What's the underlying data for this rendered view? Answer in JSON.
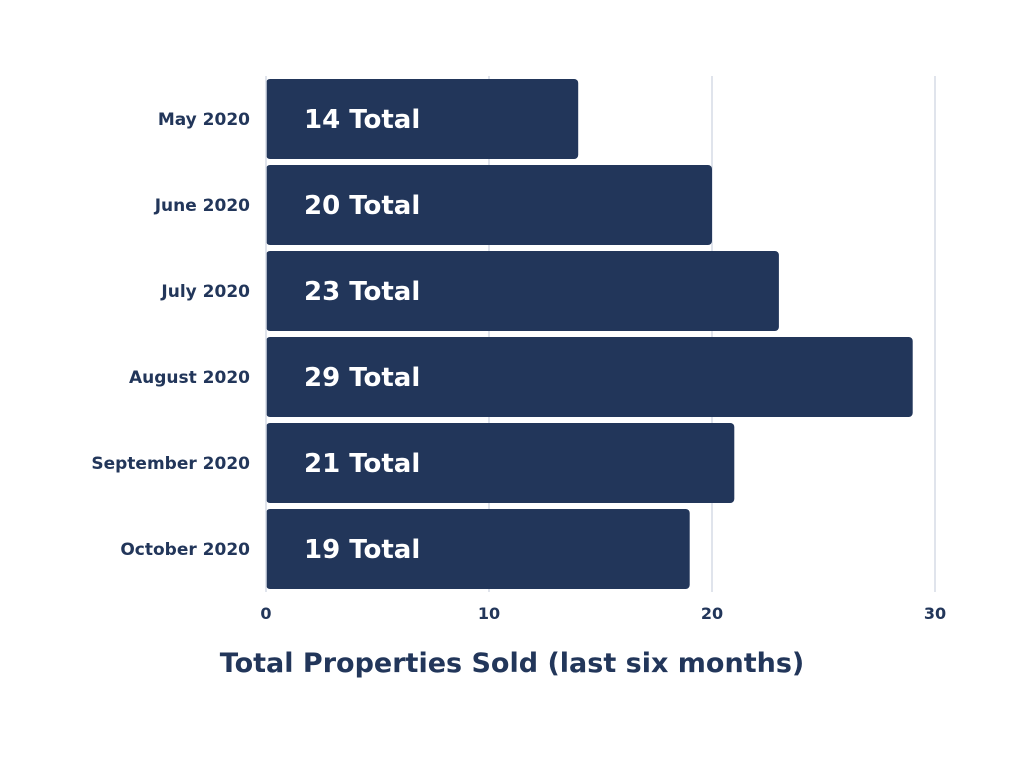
{
  "chart_data": {
    "type": "bar",
    "orientation": "horizontal",
    "categories": [
      "May 2020",
      "June 2020",
      "July 2020",
      "August 2020",
      "September 2020",
      "October 2020"
    ],
    "values": [
      14,
      20,
      23,
      29,
      21,
      19
    ],
    "data_labels": [
      "14 Total",
      "20 Total",
      "23 Total",
      "29 Total",
      "21 Total",
      "19 Total"
    ],
    "title": "Total Properties Sold (last six months)",
    "xlabel": "",
    "ylabel": "",
    "xlim": [
      0,
      30
    ],
    "xticks": [
      0,
      10,
      20,
      30
    ],
    "grid": true,
    "legend": "none",
    "bar_color": "#22365a",
    "text_color": "#22365a",
    "grid_color": "#d6dce6",
    "label_color": "#ffffff"
  }
}
